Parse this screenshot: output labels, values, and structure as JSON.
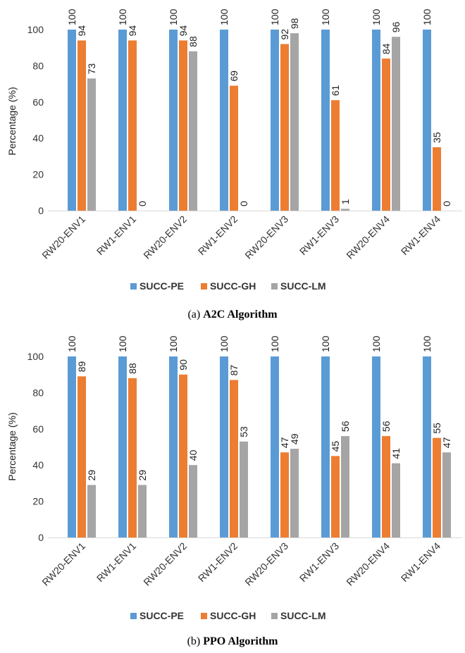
{
  "colors": {
    "pe": "#5b9bd5",
    "gh": "#ed7d31",
    "lm": "#a5a5a5",
    "axis": "#d9d9d9"
  },
  "chart_data": [
    {
      "type": "bar",
      "caption_prefix": "(a) ",
      "caption_bold": "A2C Algorithm",
      "ylabel": "Percentage (%)",
      "xlabel": "",
      "ylim": [
        0,
        100
      ],
      "yticks": [
        0,
        20,
        40,
        60,
        80,
        100
      ],
      "grid": false,
      "legend_position": "bottom",
      "categories": [
        "RW20-ENV1",
        "RW1-ENV1",
        "RW20-ENV2",
        "RW1-ENV2",
        "RW20-ENV3",
        "RW1-ENV3",
        "RW20-ENV4",
        "RW1-ENV4"
      ],
      "series": [
        {
          "name": "SUCC-PE",
          "color": "#5b9bd5",
          "values": [
            100,
            100,
            100,
            100,
            100,
            100,
            100,
            100
          ]
        },
        {
          "name": "SUCC-GH",
          "color": "#ed7d31",
          "values": [
            94,
            94,
            94,
            69,
            92,
            61,
            84,
            35
          ]
        },
        {
          "name": "SUCC-LM",
          "color": "#a5a5a5",
          "values": [
            73,
            0,
            88,
            0,
            98,
            1,
            96,
            0
          ]
        }
      ]
    },
    {
      "type": "bar",
      "caption_prefix": "(b) ",
      "caption_bold": "PPO Algorithm",
      "ylabel": "Percentage (%)",
      "xlabel": "",
      "ylim": [
        0,
        100
      ],
      "yticks": [
        0,
        20,
        40,
        60,
        80,
        100
      ],
      "grid": false,
      "legend_position": "bottom",
      "categories": [
        "RW20-ENV1",
        "RW1-ENV1",
        "RW20-ENV2",
        "RW1-ENV2",
        "RW20-ENV3",
        "RW1-ENV3",
        "RW20-ENV4",
        "RW1-ENV4"
      ],
      "series": [
        {
          "name": "SUCC-PE",
          "color": "#5b9bd5",
          "values": [
            100,
            100,
            100,
            100,
            100,
            100,
            100,
            100
          ]
        },
        {
          "name": "SUCC-GH",
          "color": "#ed7d31",
          "values": [
            89,
            88,
            90,
            87,
            47,
            45,
            56,
            55
          ]
        },
        {
          "name": "SUCC-LM",
          "color": "#a5a5a5",
          "values": [
            29,
            29,
            40,
            53,
            49,
            56,
            41,
            47
          ]
        }
      ]
    }
  ]
}
